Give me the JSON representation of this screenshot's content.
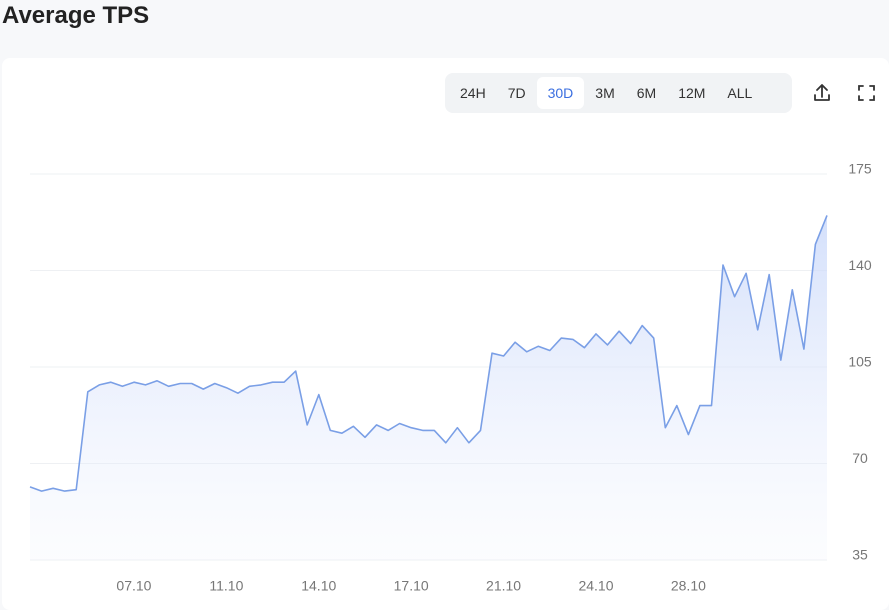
{
  "header": {
    "title": "Average TPS"
  },
  "controls": {
    "ranges": [
      "24H",
      "7D",
      "30D",
      "3M",
      "6M",
      "12M",
      "ALL"
    ],
    "active_range": 2
  },
  "chart_data": {
    "type": "area",
    "color": "#7a9fe6",
    "categories": [
      null,
      null,
      null,
      null,
      null,
      null,
      null,
      null,
      null,
      "07.10",
      null,
      null,
      null,
      null,
      null,
      null,
      null,
      "11.10",
      null,
      null,
      null,
      null,
      null,
      null,
      null,
      "14.10",
      null,
      null,
      null,
      null,
      null,
      null,
      null,
      "17.10",
      null,
      null,
      null,
      null,
      null,
      null,
      null,
      "21.10",
      null,
      null,
      null,
      null,
      null,
      null,
      null,
      "24.10",
      null,
      null,
      null,
      null,
      null,
      null,
      null,
      "28.10",
      null,
      null,
      null,
      null,
      null,
      null,
      null,
      null,
      null,
      null,
      null,
      null
    ],
    "values": [
      61.5,
      60,
      61,
      60,
      60.5,
      96,
      98.5,
      99.5,
      98,
      99.5,
      98.5,
      100,
      98,
      99,
      99,
      97,
      99,
      97.5,
      95.5,
      98,
      98.5,
      99.5,
      99.5,
      103.5,
      84,
      95,
      82,
      81,
      83.5,
      79.5,
      84,
      82,
      84.5,
      83,
      82,
      82,
      77.5,
      83,
      77.5,
      82,
      110,
      109,
      114,
      110.5,
      112.5,
      111,
      115.5,
      115,
      112,
      117,
      113,
      118,
      113.5,
      120,
      115.5,
      83,
      91,
      80.5,
      91,
      91,
      142,
      130.5,
      139,
      118.5,
      138.5,
      107.5,
      133,
      111.5,
      149.5,
      160
    ],
    "ylim": [
      35,
      175
    ],
    "yticks": [
      35,
      70,
      105,
      140,
      175
    ],
    "grid": true,
    "y_axis_side": "right"
  }
}
